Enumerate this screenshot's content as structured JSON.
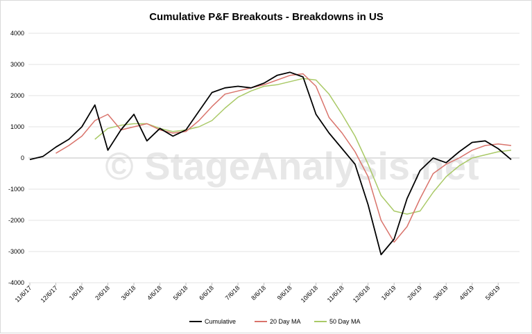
{
  "watermark": "© StageAnalysis.net",
  "chart_data": {
    "type": "line",
    "title": "Cumulative P&F Breakouts - Breakdowns in US",
    "xlabel": "",
    "ylabel": "",
    "ylim": [
      -4000,
      4000
    ],
    "yticks": [
      4000,
      3000,
      2000,
      1000,
      0,
      -1000,
      -2000,
      -3000,
      -4000
    ],
    "grid": "horizontal",
    "legend_position": "bottom",
    "x_tick_labels": [
      "11/6/17",
      "12/6/17",
      "1/6/18",
      "2/6/18",
      "3/6/18",
      "4/6/18",
      "5/6/18",
      "6/6/18",
      "7/6/18",
      "8/6/18",
      "9/6/18",
      "10/6/18",
      "11/6/18",
      "12/6/18",
      "1/6/19",
      "2/6/19",
      "3/6/19",
      "4/6/19",
      "5/6/19"
    ],
    "x": [
      "11/6/17",
      "11/21/17",
      "12/6/17",
      "12/21/17",
      "1/6/18",
      "1/21/18",
      "2/6/18",
      "2/21/18",
      "3/6/18",
      "3/21/18",
      "4/6/18",
      "4/21/18",
      "5/6/18",
      "5/21/18",
      "6/6/18",
      "6/21/18",
      "7/6/18",
      "7/21/18",
      "8/6/18",
      "8/21/18",
      "9/6/18",
      "9/21/18",
      "10/6/18",
      "10/21/18",
      "11/6/18",
      "11/21/18",
      "12/6/18",
      "12/21/18",
      "1/6/19",
      "1/21/19",
      "2/6/19",
      "2/21/19",
      "3/6/19",
      "3/21/19",
      "4/6/19",
      "4/21/19",
      "5/6/19",
      "5/21/19"
    ],
    "series": [
      {
        "name": "Cumulative",
        "color": "#000000",
        "values": [
          -50,
          50,
          350,
          600,
          1000,
          1700,
          250,
          900,
          1400,
          550,
          950,
          700,
          900,
          1500,
          2100,
          2250,
          2300,
          2250,
          2400,
          2650,
          2750,
          2600,
          1400,
          800,
          300,
          -200,
          -1500,
          -3100,
          -2600,
          -1300,
          -400,
          0,
          -150,
          200,
          500,
          550,
          300,
          -50
        ]
      },
      {
        "name": "20 Day MA",
        "color": "#d9736b",
        "values": [
          null,
          null,
          150,
          400,
          700,
          1200,
          1400,
          900,
          1000,
          1100,
          900,
          800,
          850,
          1200,
          1650,
          2050,
          2150,
          2250,
          2350,
          2500,
          2650,
          2700,
          2300,
          1300,
          800,
          200,
          -600,
          -2000,
          -2700,
          -2200,
          -1300,
          -500,
          -200,
          0,
          250,
          400,
          450,
          400
        ]
      },
      {
        "name": "50 Day MA",
        "color": "#a9c966",
        "values": [
          null,
          null,
          null,
          null,
          null,
          600,
          950,
          1050,
          1100,
          1100,
          950,
          850,
          900,
          1000,
          1200,
          1600,
          1950,
          2150,
          2300,
          2350,
          2450,
          2550,
          2500,
          2050,
          1400,
          700,
          -200,
          -1200,
          -1700,
          -1800,
          -1700,
          -1100,
          -600,
          -250,
          0,
          100,
          200,
          250
        ]
      }
    ]
  }
}
